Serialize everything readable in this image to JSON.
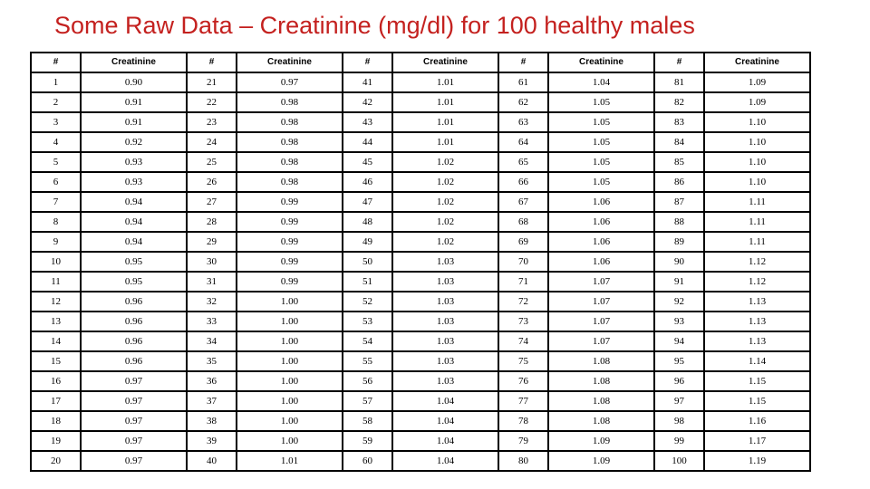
{
  "page": {
    "title": "Some Raw Data – Creatinine (mg/dl) for 100 healthy males"
  },
  "colors": {
    "title_red": "#c4211f",
    "table_border": "#000000",
    "background": "#ffffff"
  },
  "table": {
    "header_number": "#",
    "header_value": "Creatinine",
    "num_column_groups": 5,
    "rows_per_column": 20,
    "subjects": [
      {
        "n": 1,
        "creatinine": "0.90"
      },
      {
        "n": 2,
        "creatinine": "0.91"
      },
      {
        "n": 3,
        "creatinine": "0.91"
      },
      {
        "n": 4,
        "creatinine": "0.92"
      },
      {
        "n": 5,
        "creatinine": "0.93"
      },
      {
        "n": 6,
        "creatinine": "0.93"
      },
      {
        "n": 7,
        "creatinine": "0.94"
      },
      {
        "n": 8,
        "creatinine": "0.94"
      },
      {
        "n": 9,
        "creatinine": "0.94"
      },
      {
        "n": 10,
        "creatinine": "0.95"
      },
      {
        "n": 11,
        "creatinine": "0.95"
      },
      {
        "n": 12,
        "creatinine": "0.96"
      },
      {
        "n": 13,
        "creatinine": "0.96"
      },
      {
        "n": 14,
        "creatinine": "0.96"
      },
      {
        "n": 15,
        "creatinine": "0.96"
      },
      {
        "n": 16,
        "creatinine": "0.97"
      },
      {
        "n": 17,
        "creatinine": "0.97"
      },
      {
        "n": 18,
        "creatinine": "0.97"
      },
      {
        "n": 19,
        "creatinine": "0.97"
      },
      {
        "n": 20,
        "creatinine": "0.97"
      },
      {
        "n": 21,
        "creatinine": "0.97"
      },
      {
        "n": 22,
        "creatinine": "0.98"
      },
      {
        "n": 23,
        "creatinine": "0.98"
      },
      {
        "n": 24,
        "creatinine": "0.98"
      },
      {
        "n": 25,
        "creatinine": "0.98"
      },
      {
        "n": 26,
        "creatinine": "0.98"
      },
      {
        "n": 27,
        "creatinine": "0.99"
      },
      {
        "n": 28,
        "creatinine": "0.99"
      },
      {
        "n": 29,
        "creatinine": "0.99"
      },
      {
        "n": 30,
        "creatinine": "0.99"
      },
      {
        "n": 31,
        "creatinine": "0.99"
      },
      {
        "n": 32,
        "creatinine": "1.00"
      },
      {
        "n": 33,
        "creatinine": "1.00"
      },
      {
        "n": 34,
        "creatinine": "1.00"
      },
      {
        "n": 35,
        "creatinine": "1.00"
      },
      {
        "n": 36,
        "creatinine": "1.00"
      },
      {
        "n": 37,
        "creatinine": "1.00"
      },
      {
        "n": 38,
        "creatinine": "1.00"
      },
      {
        "n": 39,
        "creatinine": "1.00"
      },
      {
        "n": 40,
        "creatinine": "1.01"
      },
      {
        "n": 41,
        "creatinine": "1.01"
      },
      {
        "n": 42,
        "creatinine": "1.01"
      },
      {
        "n": 43,
        "creatinine": "1.01"
      },
      {
        "n": 44,
        "creatinine": "1.01"
      },
      {
        "n": 45,
        "creatinine": "1.02"
      },
      {
        "n": 46,
        "creatinine": "1.02"
      },
      {
        "n": 47,
        "creatinine": "1.02"
      },
      {
        "n": 48,
        "creatinine": "1.02"
      },
      {
        "n": 49,
        "creatinine": "1.02"
      },
      {
        "n": 50,
        "creatinine": "1.03"
      },
      {
        "n": 51,
        "creatinine": "1.03"
      },
      {
        "n": 52,
        "creatinine": "1.03"
      },
      {
        "n": 53,
        "creatinine": "1.03"
      },
      {
        "n": 54,
        "creatinine": "1.03"
      },
      {
        "n": 55,
        "creatinine": "1.03"
      },
      {
        "n": 56,
        "creatinine": "1.03"
      },
      {
        "n": 57,
        "creatinine": "1.04"
      },
      {
        "n": 58,
        "creatinine": "1.04"
      },
      {
        "n": 59,
        "creatinine": "1.04"
      },
      {
        "n": 60,
        "creatinine": "1.04"
      },
      {
        "n": 61,
        "creatinine": "1.04"
      },
      {
        "n": 62,
        "creatinine": "1.05"
      },
      {
        "n": 63,
        "creatinine": "1.05"
      },
      {
        "n": 64,
        "creatinine": "1.05"
      },
      {
        "n": 65,
        "creatinine": "1.05"
      },
      {
        "n": 66,
        "creatinine": "1.05"
      },
      {
        "n": 67,
        "creatinine": "1.06"
      },
      {
        "n": 68,
        "creatinine": "1.06"
      },
      {
        "n": 69,
        "creatinine": "1.06"
      },
      {
        "n": 70,
        "creatinine": "1.06"
      },
      {
        "n": 71,
        "creatinine": "1.07"
      },
      {
        "n": 72,
        "creatinine": "1.07"
      },
      {
        "n": 73,
        "creatinine": "1.07"
      },
      {
        "n": 74,
        "creatinine": "1.07"
      },
      {
        "n": 75,
        "creatinine": "1.08"
      },
      {
        "n": 76,
        "creatinine": "1.08"
      },
      {
        "n": 77,
        "creatinine": "1.08"
      },
      {
        "n": 78,
        "creatinine": "1.08"
      },
      {
        "n": 79,
        "creatinine": "1.09"
      },
      {
        "n": 80,
        "creatinine": "1.09"
      },
      {
        "n": 81,
        "creatinine": "1.09"
      },
      {
        "n": 82,
        "creatinine": "1.09"
      },
      {
        "n": 83,
        "creatinine": "1.10"
      },
      {
        "n": 84,
        "creatinine": "1.10"
      },
      {
        "n": 85,
        "creatinine": "1.10"
      },
      {
        "n": 86,
        "creatinine": "1.10"
      },
      {
        "n": 87,
        "creatinine": "1.11"
      },
      {
        "n": 88,
        "creatinine": "1.11"
      },
      {
        "n": 89,
        "creatinine": "1.11"
      },
      {
        "n": 90,
        "creatinine": "1.12"
      },
      {
        "n": 91,
        "creatinine": "1.12"
      },
      {
        "n": 92,
        "creatinine": "1.13"
      },
      {
        "n": 93,
        "creatinine": "1.13"
      },
      {
        "n": 94,
        "creatinine": "1.13"
      },
      {
        "n": 95,
        "creatinine": "1.14"
      },
      {
        "n": 96,
        "creatinine": "1.15"
      },
      {
        "n": 97,
        "creatinine": "1.15"
      },
      {
        "n": 98,
        "creatinine": "1.16"
      },
      {
        "n": 99,
        "creatinine": "1.17"
      },
      {
        "n": 100,
        "creatinine": "1.19"
      }
    ]
  }
}
